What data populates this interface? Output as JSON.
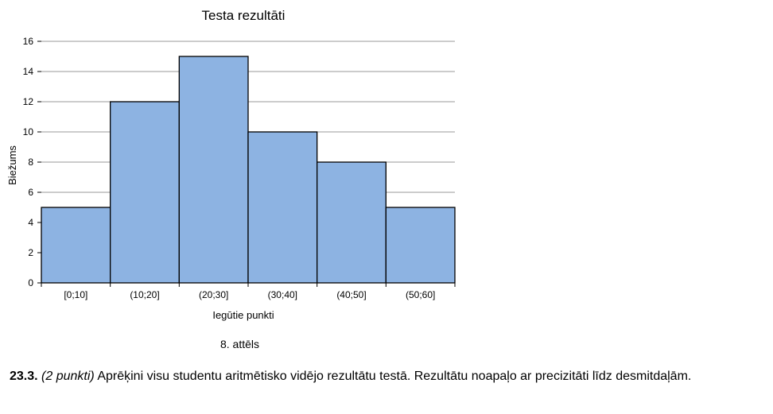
{
  "chart_data": {
    "type": "bar",
    "title": "Testa rezultāti",
    "xlabel": "Iegūtie punkti",
    "ylabel": "Biežums",
    "categories": [
      "[0;10]",
      "(10;20]",
      "(20;30]",
      "(30;40]",
      "(40;50]",
      "(50;60]"
    ],
    "values": [
      5,
      12,
      15,
      10,
      8,
      5
    ],
    "ylim": [
      0,
      16
    ],
    "yticks": [
      0,
      2,
      4,
      6,
      8,
      10,
      12,
      14,
      16
    ],
    "grid": true,
    "bar_color": "#8db3e2",
    "bar_edge_color": "#000000",
    "grid_color": "#999999"
  },
  "figure_caption": "8. attēls",
  "task": {
    "number": "23.3.",
    "points": "(2 punkti)",
    "text": "Aprēķini visu studentu aritmētisko vidējo rezultātu testā. Rezultātu noapaļo ar precizitāti līdz desmitdaļām."
  }
}
